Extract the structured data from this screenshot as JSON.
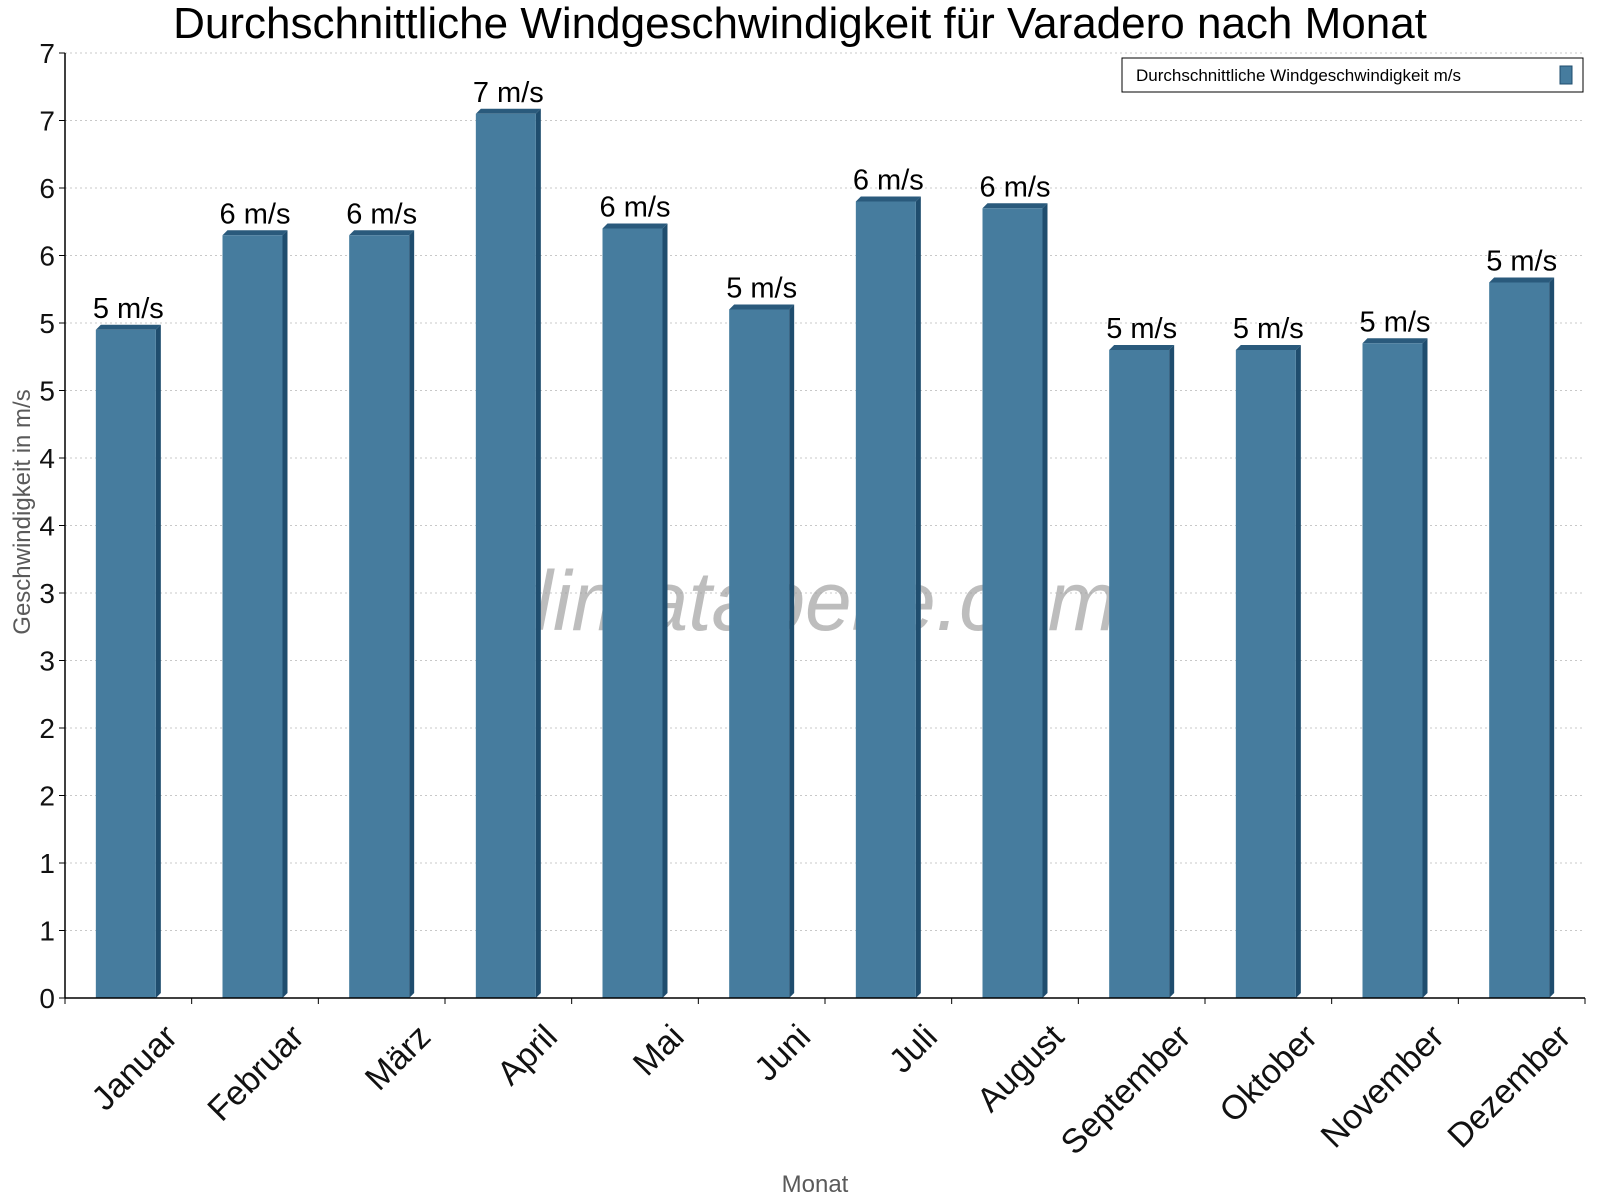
{
  "chart_data": {
    "type": "bar",
    "title": "Durchschnittliche Windgeschwindigkeit für Varadero nach Monat",
    "xlabel": "Monat",
    "ylabel": "Geschwindigkeit in m/s",
    "categories": [
      "Januar",
      "Februar",
      "März",
      "April",
      "Mai",
      "Juni",
      "Juli",
      "August",
      "September",
      "Oktober",
      "November",
      "Dezember"
    ],
    "series": [
      {
        "name": "Durchschnittliche Windgeschwindigkeit m/s",
        "values": [
          4.95,
          5.65,
          5.65,
          6.55,
          5.7,
          5.1,
          5.9,
          5.85,
          4.8,
          4.8,
          4.85,
          5.3
        ],
        "labels": [
          "5 m/s",
          "6 m/s",
          "6 m/s",
          "7 m/s",
          "6 m/s",
          "5 m/s",
          "6 m/s",
          "6 m/s",
          "5 m/s",
          "5 m/s",
          "5 m/s",
          "5 m/s"
        ]
      }
    ],
    "ylim": [
      0,
      7
    ],
    "y_ticks": [
      0,
      0.5,
      1,
      1.5,
      2,
      2.5,
      3,
      3.5,
      4,
      4.5,
      5,
      5.5,
      6,
      6.5,
      7
    ],
    "y_tick_labels": [
      "0",
      "1",
      "1",
      "2",
      "2",
      "3",
      "3",
      "4",
      "4",
      "5",
      "5",
      "6",
      "6",
      "7",
      "7"
    ],
    "grid": true,
    "legend_position": "top-right",
    "colors": {
      "bar": "#467c9e",
      "bar_side": "#1f4d6e",
      "bar_top": "#2a5a7c"
    },
    "watermark": "klimatabelle.com"
  }
}
